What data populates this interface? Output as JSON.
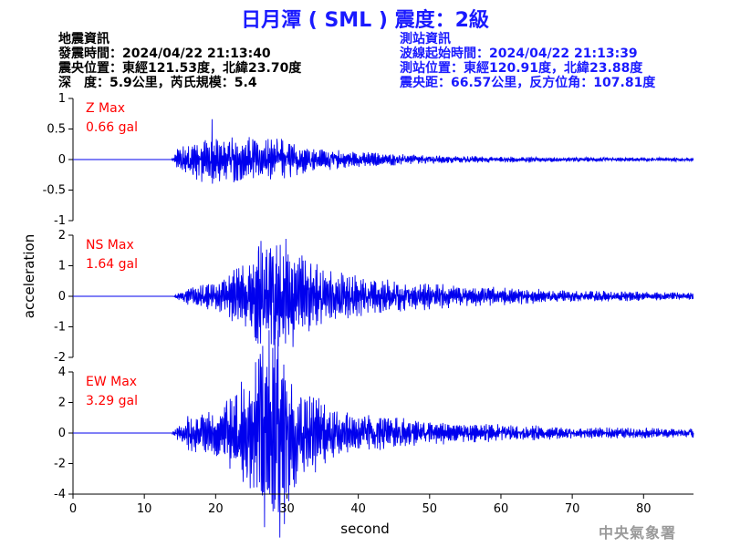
{
  "title": "日月潭 ( SML ) 震度：2級",
  "event_info": {
    "heading": "地震資訊",
    "origin_time": "發震時間：2024/04/22 21:13:40",
    "epicenter": "震央位置：東經121.53度，北緯23.70度",
    "depth_magnitude": "深　度：5.9公里，芮氏規模：5.4"
  },
  "station_info": {
    "heading": "測站資訊",
    "wave_start": "波線起始時間：2024/04/22 21:13:39",
    "station_location": "測站位置：東經120.91度，北緯23.88度",
    "distance_azimuth": "震央距：66.57公里，反方位角：107.81度"
  },
  "watermark": "中央氣象署",
  "colors": {
    "title": "#1a1aff",
    "trace": "#0000ee",
    "max_label": "#ff0000",
    "station_text": "#1a1aff"
  },
  "chart_data": {
    "type": "line",
    "xlabel": "second",
    "ylabel": "acceleration",
    "xlim": [
      0,
      87
    ],
    "x_ticks": [
      0,
      10,
      20,
      30,
      40,
      50,
      60,
      70,
      80
    ],
    "grid": false,
    "panels": [
      {
        "name": "Z Max",
        "max_value": "0.66 gal",
        "ylim": [
          -1,
          1
        ],
        "y_ticks": [
          -1,
          -0.5,
          0,
          0.5,
          1
        ],
        "onset": 13.8,
        "peak_time": 19.5,
        "peak_amp": 0.66,
        "envelope": [
          [
            0,
            0
          ],
          [
            13.8,
            0
          ],
          [
            15,
            0.25
          ],
          [
            19,
            0.45
          ],
          [
            23,
            0.4
          ],
          [
            27,
            0.4
          ],
          [
            30,
            0.33
          ],
          [
            34,
            0.2
          ],
          [
            40,
            0.13
          ],
          [
            50,
            0.07
          ],
          [
            60,
            0.05
          ],
          [
            87,
            0.03
          ]
        ]
      },
      {
        "name": "NS Max",
        "max_value": "1.64 gal",
        "ylim": [
          -2,
          2
        ],
        "y_ticks": [
          -2,
          -1,
          0,
          1,
          2
        ],
        "onset": 14.0,
        "peak_time": 28.8,
        "peak_amp": -1.64,
        "envelope": [
          [
            0,
            0
          ],
          [
            14,
            0
          ],
          [
            16,
            0.15
          ],
          [
            20,
            0.25
          ],
          [
            24,
            0.6
          ],
          [
            27,
            1.0
          ],
          [
            29,
            1.1
          ],
          [
            32,
            0.7
          ],
          [
            36,
            0.45
          ],
          [
            42,
            0.3
          ],
          [
            50,
            0.22
          ],
          [
            60,
            0.15
          ],
          [
            70,
            0.1
          ],
          [
            87,
            0.06
          ]
        ]
      },
      {
        "name": "EW Max",
        "max_value": "3.29 gal",
        "ylim": [
          -4,
          4
        ],
        "y_ticks": [
          -4,
          -2,
          0,
          2,
          4
        ],
        "onset": 13.8,
        "peak_time": 28.5,
        "peak_amp": 3.29,
        "envelope": [
          [
            0,
            0
          ],
          [
            13.8,
            0
          ],
          [
            16,
            0.3
          ],
          [
            20,
            0.4
          ],
          [
            24,
            0.9
          ],
          [
            27,
            1.8
          ],
          [
            28.5,
            2.0
          ],
          [
            31,
            1.0
          ],
          [
            35,
            0.55
          ],
          [
            40,
            0.35
          ],
          [
            50,
            0.2
          ],
          [
            60,
            0.15
          ],
          [
            70,
            0.1
          ],
          [
            87,
            0.08
          ]
        ]
      }
    ]
  }
}
